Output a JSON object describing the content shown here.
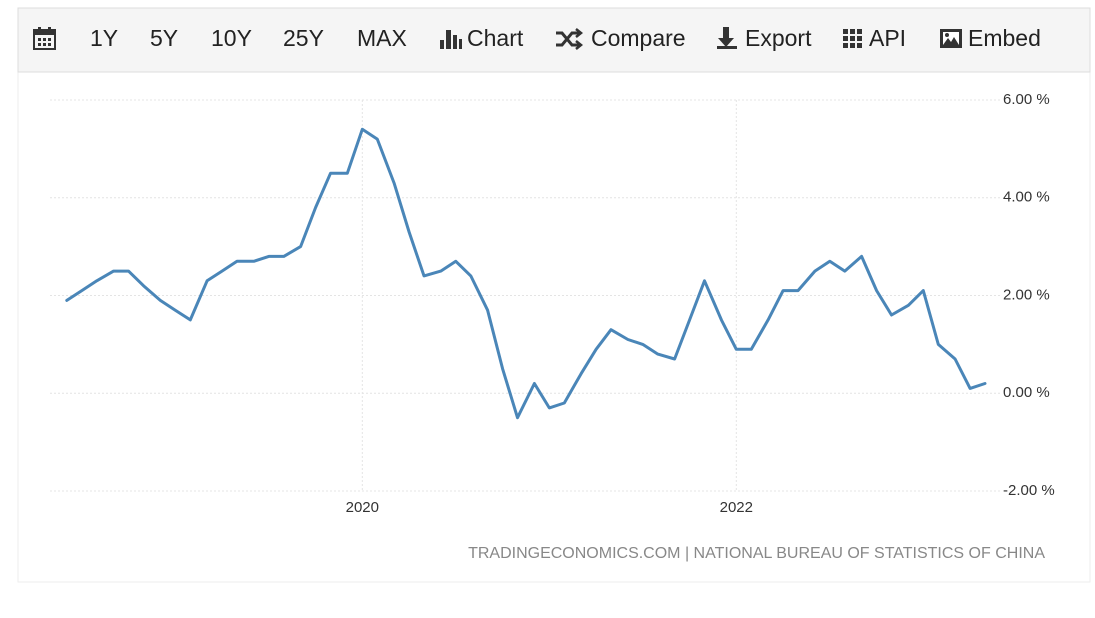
{
  "toolbar": {
    "ranges": [
      "1Y",
      "5Y",
      "10Y",
      "25Y",
      "MAX"
    ],
    "buttons": [
      "Chart",
      "Compare",
      "Export",
      "API",
      "Embed"
    ]
  },
  "chart_data": {
    "type": "line",
    "color": "#4a86b8",
    "grid": true,
    "source": "TRADINGECONOMICS.COM | NATIONAL BUREAU OF STATISTICS OF CHINA",
    "x": [
      2018.42,
      2018.5,
      2018.58,
      2018.67,
      2018.75,
      2018.83,
      2018.92,
      2019.0,
      2019.08,
      2019.17,
      2019.25,
      2019.33,
      2019.42,
      2019.5,
      2019.58,
      2019.67,
      2019.75,
      2019.83,
      2019.92,
      2020.0,
      2020.08,
      2020.17,
      2020.25,
      2020.33,
      2020.42,
      2020.5,
      2020.58,
      2020.67,
      2020.75,
      2020.83,
      2020.92,
      2021.0,
      2021.08,
      2021.17,
      2021.25,
      2021.33,
      2021.42,
      2021.5,
      2021.58,
      2021.67,
      2021.75,
      2021.83,
      2021.92,
      2022.0,
      2022.08,
      2022.17,
      2022.25,
      2022.33,
      2022.42,
      2022.5,
      2022.58,
      2022.67,
      2022.75,
      2022.83,
      2022.92,
      2023.0,
      2023.08,
      2023.17,
      2023.25,
      2023.33
    ],
    "values": [
      1.9,
      2.1,
      2.3,
      2.5,
      2.5,
      2.2,
      1.9,
      1.7,
      1.5,
      2.3,
      2.5,
      2.7,
      2.7,
      2.8,
      2.8,
      3.0,
      3.8,
      4.5,
      4.5,
      5.4,
      5.2,
      4.3,
      3.3,
      2.4,
      2.5,
      2.7,
      2.4,
      1.7,
      0.5,
      -0.5,
      0.2,
      -0.3,
      -0.2,
      0.4,
      0.9,
      1.3,
      1.1,
      1.0,
      0.8,
      0.7,
      1.5,
      2.3,
      1.5,
      0.9,
      0.9,
      1.5,
      2.1,
      2.1,
      2.5,
      2.7,
      2.5,
      2.8,
      2.1,
      1.6,
      1.8,
      2.1,
      1.0,
      0.7,
      0.1,
      0.2
    ],
    "xlim": [
      2018.33,
      2023.41
    ],
    "xticks": [
      2020,
      2022
    ],
    "ylim": [
      -2,
      6
    ],
    "yticks": [
      {
        "value": -2,
        "label": "-2.00 %"
      },
      {
        "value": 0,
        "label": "0.00 %"
      },
      {
        "value": 2,
        "label": "2.00 %"
      },
      {
        "value": 4,
        "label": "4.00 %"
      },
      {
        "value": 6,
        "label": "6.00 %"
      }
    ]
  }
}
